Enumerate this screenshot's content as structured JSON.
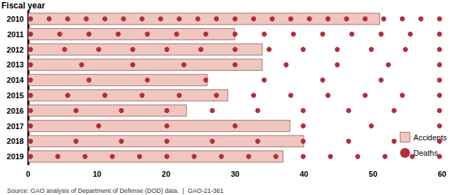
{
  "chart_data": {
    "type": "bar",
    "orientation": "horizontal",
    "ylabel": "Fiscal year",
    "categories": [
      "2010",
      "2011",
      "2012",
      "2013",
      "2014",
      "2015",
      "2016",
      "2017",
      "2018",
      "2019"
    ],
    "series": [
      {
        "name": "Accidents",
        "type": "bar",
        "color": "#f0c7c0",
        "values": [
          51,
          30,
          34,
          34,
          26,
          29,
          23,
          38,
          40,
          37
        ]
      },
      {
        "name": "Deaths",
        "type": "pictorial",
        "marker": "circle",
        "color": "#b22e3a",
        "values": [
          23,
          15,
          13,
          9,
          8,
          12,
          10,
          7,
          10,
          16
        ]
      }
    ],
    "xlim": [
      0,
      60
    ],
    "xticks": [
      0,
      10,
      20,
      30,
      40,
      50,
      60
    ],
    "grid": false,
    "legend": "lower right",
    "annotations": [
      "Source: GAO analysis of Department of Defense (DOD) data.  |  GAO-21-361"
    ]
  }
}
